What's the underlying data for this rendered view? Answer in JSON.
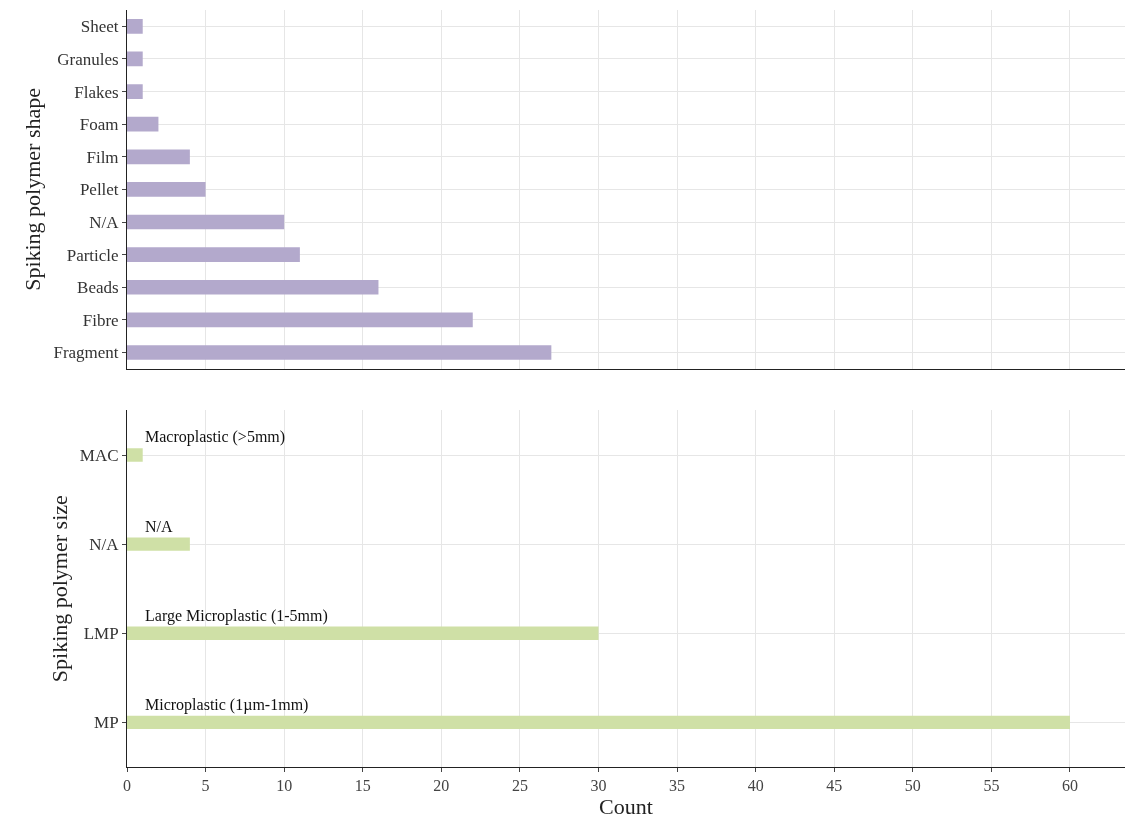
{
  "chart_data": [
    {
      "type": "bar",
      "orientation": "horizontal",
      "ylabel": "Spiking polymer shape",
      "categories": [
        "Sheet",
        "Granules",
        "Flakes",
        "Foam",
        "Film",
        "Pellet",
        "N/A",
        "Particle",
        "Beads",
        "Fibre",
        "Fragment"
      ],
      "values": [
        1,
        1,
        1,
        2,
        4,
        5,
        10,
        11,
        16,
        22,
        27
      ],
      "color": "#b3a9cc",
      "xlim": [
        0,
        63.5
      ],
      "xticks": [
        0,
        5,
        10,
        15,
        20,
        25,
        30,
        35,
        40,
        45,
        50,
        55,
        60
      ],
      "grid": true,
      "tick_labels": "y"
    },
    {
      "type": "bar",
      "orientation": "horizontal",
      "xlabel": "Count",
      "ylabel": "Spiking polymer size",
      "categories": [
        "MAC",
        "N/A",
        "LMP",
        "MP"
      ],
      "values": [
        1,
        4,
        30,
        60
      ],
      "color": "#cfe0a6",
      "xlim": [
        0,
        63.5
      ],
      "xticks": [
        0,
        5,
        10,
        15,
        20,
        25,
        30,
        35,
        40,
        45,
        50,
        55,
        60
      ],
      "grid": true,
      "annotations": [
        "Macroplastic (>5mm)",
        "N/A",
        "Large Microplastic (1-5mm)",
        "Microplastic (1µm-1mm)"
      ]
    }
  ]
}
